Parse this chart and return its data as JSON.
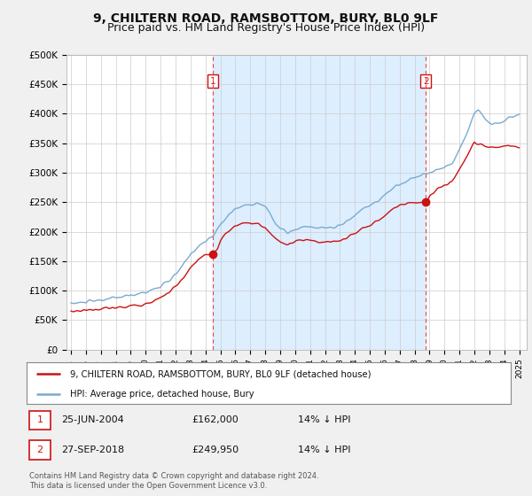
{
  "title": "9, CHILTERN ROAD, RAMSBOTTOM, BURY, BL0 9LF",
  "subtitle": "Price paid vs. HM Land Registry's House Price Index (HPI)",
  "title_fontsize": 10,
  "subtitle_fontsize": 9,
  "ylabel_ticks": [
    "£0",
    "£50K",
    "£100K",
    "£150K",
    "£200K",
    "£250K",
    "£300K",
    "£350K",
    "£400K",
    "£450K",
    "£500K"
  ],
  "ytick_values": [
    0,
    50000,
    100000,
    150000,
    200000,
    250000,
    300000,
    350000,
    400000,
    450000,
    500000
  ],
  "ylim": [
    0,
    500000
  ],
  "xlim_start": 1994.7,
  "xlim_end": 2025.5,
  "hpi_color": "#7aaad0",
  "hpi_fill_color": "#ddeeff",
  "price_color": "#cc1111",
  "vline_color": "#ee4444",
  "background_color": "#f5f5f5",
  "plot_bg_color": "#ffffff",
  "legend_label_price": "9, CHILTERN ROAD, RAMSBOTTOM, BURY, BL0 9LF (detached house)",
  "legend_label_hpi": "HPI: Average price, detached house, Bury",
  "sale1_year": 2004.49,
  "sale1_price": 162000,
  "sale1_label": "1",
  "sale1_date": "25-JUN-2004",
  "sale1_price_str": "£162,000",
  "sale1_pct": "14% ↓ HPI",
  "sale2_year": 2018.75,
  "sale2_price": 249950,
  "sale2_label": "2",
  "sale2_date": "27-SEP-2018",
  "sale2_price_str": "£249,950",
  "sale2_pct": "14% ↓ HPI",
  "footer": "Contains HM Land Registry data © Crown copyright and database right 2024.\nThis data is licensed under the Open Government Licence v3.0.",
  "xtick_years": [
    1995,
    1996,
    1997,
    1998,
    1999,
    2000,
    2001,
    2002,
    2003,
    2004,
    2005,
    2006,
    2007,
    2008,
    2009,
    2010,
    2011,
    2012,
    2013,
    2014,
    2015,
    2016,
    2017,
    2018,
    2019,
    2020,
    2021,
    2022,
    2023,
    2024,
    2025
  ],
  "hpi_anchors_t": [
    1995.0,
    1995.5,
    1996.0,
    1996.5,
    1997.0,
    1997.5,
    1998.0,
    1998.5,
    1999.0,
    1999.5,
    2000.0,
    2000.5,
    2001.0,
    2001.5,
    2002.0,
    2002.5,
    2003.0,
    2003.5,
    2004.0,
    2004.5,
    2005.0,
    2005.5,
    2006.0,
    2006.5,
    2007.0,
    2007.5,
    2008.0,
    2008.25,
    2008.5,
    2008.75,
    2009.0,
    2009.5,
    2010.0,
    2010.5,
    2011.0,
    2011.5,
    2012.0,
    2012.5,
    2013.0,
    2013.5,
    2014.0,
    2014.5,
    2015.0,
    2015.5,
    2016.0,
    2016.5,
    2017.0,
    2017.5,
    2018.0,
    2018.5,
    2019.0,
    2019.5,
    2020.0,
    2020.5,
    2021.0,
    2021.5,
    2022.0,
    2022.25,
    2022.5,
    2022.75,
    2023.0,
    2023.5,
    2024.0,
    2024.5,
    2025.0
  ],
  "hpi_anchors_y": [
    78000,
    79000,
    81000,
    82000,
    84000,
    86000,
    88000,
    90000,
    92000,
    95000,
    98000,
    102000,
    107000,
    115000,
    127000,
    143000,
    162000,
    175000,
    183000,
    192000,
    212000,
    228000,
    238000,
    244000,
    247000,
    248000,
    242000,
    235000,
    222000,
    212000,
    205000,
    198000,
    202000,
    207000,
    208000,
    207000,
    205000,
    207000,
    210000,
    218000,
    228000,
    238000,
    245000,
    252000,
    262000,
    272000,
    280000,
    287000,
    292000,
    296000,
    300000,
    305000,
    308000,
    315000,
    340000,
    370000,
    400000,
    405000,
    398000,
    390000,
    385000,
    382000,
    388000,
    395000,
    398000
  ],
  "price_anchors_t": [
    1995.0,
    1995.5,
    1996.0,
    1996.5,
    1997.0,
    1997.5,
    1998.0,
    1998.5,
    1999.0,
    1999.5,
    2000.0,
    2000.5,
    2001.0,
    2001.5,
    2002.0,
    2002.5,
    2003.0,
    2003.5,
    2004.0,
    2004.49,
    2004.8,
    2005.0,
    2005.5,
    2006.0,
    2006.5,
    2007.0,
    2007.5,
    2008.0,
    2008.5,
    2009.0,
    2009.5,
    2010.0,
    2010.5,
    2011.0,
    2011.5,
    2012.0,
    2012.5,
    2013.0,
    2013.5,
    2014.0,
    2014.5,
    2015.0,
    2015.5,
    2016.0,
    2016.5,
    2017.0,
    2017.5,
    2018.0,
    2018.75,
    2019.0,
    2019.5,
    2020.0,
    2020.5,
    2021.0,
    2021.5,
    2022.0,
    2022.5,
    2023.0,
    2023.5,
    2024.0,
    2024.5,
    2025.0
  ],
  "price_anchors_y": [
    65000,
    66000,
    67000,
    68000,
    69000,
    70000,
    71000,
    72000,
    74000,
    76000,
    78000,
    82000,
    88000,
    96000,
    107000,
    120000,
    138000,
    152000,
    160000,
    162000,
    172000,
    185000,
    200000,
    210000,
    215000,
    215000,
    212000,
    208000,
    192000,
    183000,
    178000,
    182000,
    185000,
    184000,
    183000,
    182000,
    183000,
    185000,
    190000,
    198000,
    205000,
    210000,
    218000,
    228000,
    238000,
    245000,
    248000,
    250000,
    249950,
    260000,
    272000,
    278000,
    285000,
    305000,
    328000,
    352000,
    348000,
    342000,
    342000,
    345000,
    345000,
    342000
  ]
}
